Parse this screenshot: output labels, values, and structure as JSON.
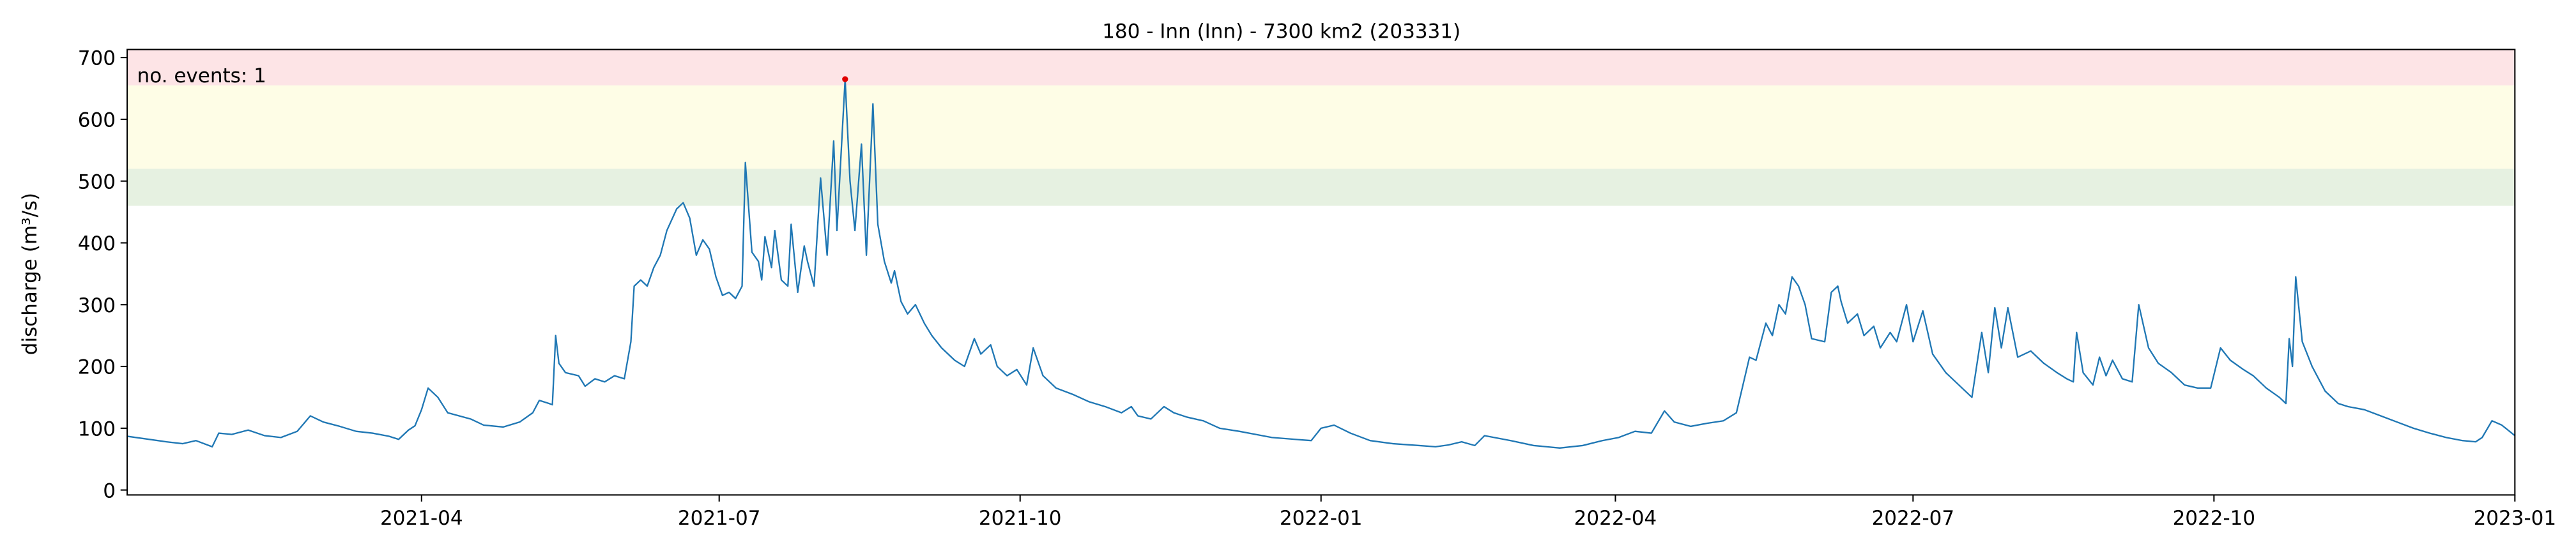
{
  "chart_data": {
    "type": "line",
    "title": "180 - Inn (Inn) - 7300 km2 (203331)",
    "y_label": "discharge (m³/s)",
    "annotation": "no. events: 1",
    "xlim": [
      0,
      730
    ],
    "xticks": [
      {
        "value": 90,
        "label": "2021-04"
      },
      {
        "value": 181,
        "label": "2021-07"
      },
      {
        "value": 273,
        "label": "2021-10"
      },
      {
        "value": 365,
        "label": "2022-01"
      },
      {
        "value": 455,
        "label": "2022-04"
      },
      {
        "value": 546,
        "label": "2022-07"
      },
      {
        "value": 638,
        "label": "2022-10"
      },
      {
        "value": 730,
        "label": "2023-01"
      }
    ],
    "ylim": [
      -8,
      713
    ],
    "yticks": [
      0,
      100,
      200,
      300,
      400,
      500,
      600,
      700
    ],
    "bands": [
      {
        "range": [
          460,
          520
        ],
        "color": "#e6f1e1"
      },
      {
        "range": [
          520,
          655
        ],
        "color": "#fefde6"
      },
      {
        "range": [
          655,
          713
        ],
        "color": "#fde4e6"
      }
    ],
    "series": [
      {
        "color": "#1f77b4",
        "x": [
          0,
          12,
          17,
          21,
          26,
          28,
          32,
          37,
          42,
          47,
          52,
          56,
          60,
          65,
          70,
          75,
          80,
          83,
          86,
          88,
          90,
          92,
          95,
          98,
          105,
          109,
          115,
          120,
          124,
          126,
          129,
          130,
          131,
          132,
          134,
          138,
          140,
          143,
          146,
          149,
          152,
          154,
          155,
          157,
          159,
          161,
          163,
          165,
          168,
          170,
          172,
          174,
          176,
          178,
          180,
          182,
          184,
          186,
          188,
          189,
          191,
          193,
          194,
          195,
          197,
          198,
          200,
          202,
          203,
          205,
          207,
          208,
          210,
          212,
          214,
          216,
          217,
          219.5,
          221,
          222.5,
          224.5,
          226,
          228,
          229.5,
          231.5,
          233.6,
          234.6,
          236.6,
          238.6,
          241,
          243.7,
          246,
          249,
          253,
          256,
          259,
          261,
          264,
          266,
          269,
          272,
          275,
          277,
          280,
          284,
          289,
          294,
          299,
          304,
          307,
          309,
          313,
          317,
          320,
          324,
          329,
          334,
          340,
          345,
          350,
          357,
          362,
          365,
          369,
          374,
          380,
          387,
          395,
          400,
          404,
          408,
          412,
          415,
          423,
          430,
          438,
          445,
          451,
          456,
          461,
          466,
          470,
          473,
          478,
          483,
          488,
          492,
          496,
          498,
          501,
          503,
          505,
          507,
          509,
          511,
          513,
          515,
          519,
          521,
          523,
          524,
          526,
          529,
          531,
          534,
          536,
          539,
          541,
          544,
          546,
          549,
          552,
          556,
          560,
          564,
          567,
          569,
          571,
          573,
          575,
          578,
          582,
          586,
          590,
          593,
          595,
          596,
          598,
          601,
          603,
          605,
          607,
          610,
          613,
          615,
          618,
          621,
          625,
          629,
          633,
          637,
          640,
          643,
          647,
          650,
          654,
          658,
          660,
          661,
          662,
          663,
          665,
          668,
          672,
          676,
          679,
          684,
          689,
          694,
          699,
          704,
          709,
          714,
          718,
          720,
          723,
          726,
          730
        ],
        "values": [
          87,
          78,
          75,
          80,
          70,
          92,
          90,
          97,
          88,
          85,
          95,
          120,
          110,
          103,
          95,
          92,
          87,
          82,
          97,
          104,
          130,
          165,
          150,
          125,
          115,
          105,
          102,
          110,
          125,
          145,
          140,
          138,
          250,
          205,
          190,
          185,
          168,
          180,
          175,
          185,
          180,
          240,
          330,
          340,
          330,
          360,
          380,
          420,
          455,
          465,
          440,
          380,
          405,
          390,
          345,
          315,
          320,
          310,
          330,
          530,
          385,
          370,
          340,
          410,
          360,
          420,
          340,
          330,
          430,
          320,
          395,
          370,
          330,
          505,
          380,
          565,
          420,
          665,
          500,
          420,
          560,
          380,
          625,
          430,
          370,
          335,
          355,
          305,
          285,
          300,
          270,
          250,
          230,
          210,
          200,
          245,
          220,
          235,
          200,
          185,
          195,
          170,
          230,
          185,
          165,
          155,
          143,
          135,
          125,
          135,
          120,
          115,
          135,
          125,
          118,
          112,
          100,
          95,
          90,
          85,
          82,
          80,
          100,
          105,
          92,
          80,
          75,
          72,
          70,
          73,
          78,
          72,
          88,
          80,
          72,
          68,
          72,
          80,
          85,
          95,
          92,
          128,
          110,
          103,
          108,
          112,
          125,
          215,
          210,
          270,
          250,
          300,
          285,
          345,
          330,
          300,
          245,
          240,
          320,
          330,
          305,
          270,
          285,
          250,
          265,
          230,
          255,
          240,
          300,
          240,
          290,
          220,
          190,
          170,
          150,
          255,
          190,
          295,
          230,
          295,
          215,
          225,
          205,
          190,
          180,
          175,
          255,
          190,
          170,
          215,
          185,
          210,
          180,
          175,
          300,
          230,
          205,
          190,
          170,
          165,
          165,
          230,
          210,
          195,
          185,
          165,
          150,
          140,
          245,
          200,
          345,
          240,
          200,
          160,
          140,
          135,
          130,
          120,
          110,
          100,
          92,
          85,
          80,
          78,
          85,
          112,
          105,
          88
        ]
      }
    ],
    "events": {
      "color": "#e00000",
      "x": [
        219.5
      ],
      "values": [
        665
      ]
    }
  }
}
